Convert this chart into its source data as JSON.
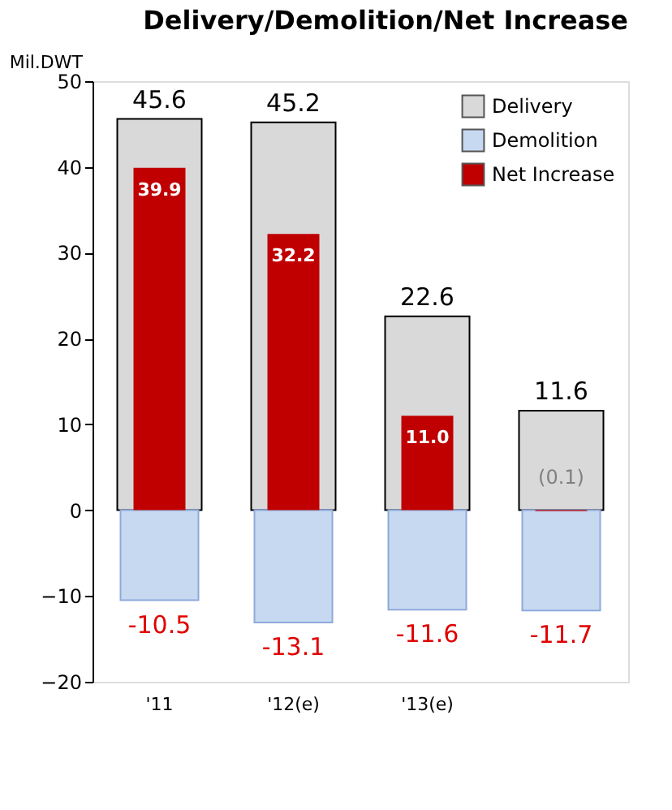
{
  "chart_data": {
    "type": "bar",
    "title": "Delivery/Demolition/Net Increase",
    "ylabel": "Mil.DWT",
    "categories": [
      "'11",
      "'12(e)",
      "'13(e)",
      null
    ],
    "series": [
      {
        "name": "Delivery",
        "color": "#d9d9d9",
        "values": [
          45.6,
          45.2,
          22.6,
          11.6
        ],
        "value_labels": [
          "45.6",
          "45.2",
          "22.6",
          "11.6"
        ]
      },
      {
        "name": "Demolition",
        "color": "#c6d9f1",
        "values": [
          -10.5,
          -13.1,
          -11.6,
          -11.7
        ],
        "value_labels": [
          "-10.5",
          "-13.1",
          "-11.6",
          "-11.7"
        ]
      },
      {
        "name": "Net Increase",
        "color": "#c00000",
        "values": [
          39.9,
          32.2,
          11.0,
          -0.1
        ],
        "value_labels": [
          "39.9",
          "32.2",
          "11.0",
          "(0.1)"
        ]
      }
    ],
    "ylim": [
      -20,
      50
    ],
    "yticks": [
      -20,
      -10,
      0,
      10,
      20,
      30,
      40,
      50
    ],
    "grid": false,
    "legend": "top right"
  }
}
